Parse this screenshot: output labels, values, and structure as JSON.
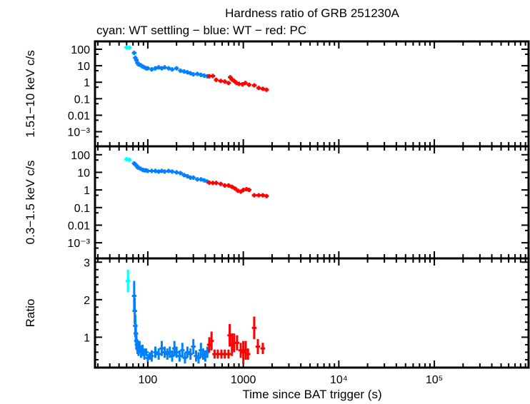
{
  "chart_data": {
    "type": "scatter",
    "title": "Hardness ratio of GRB 251230A",
    "subtitle": "cyan: WT settling − blue: WT − red: PC",
    "xlabel": "Time since BAT trigger (s)",
    "xscale": "log",
    "xlim": [
      28,
      970000
    ],
    "x_ticks": [
      {
        "v": 100,
        "label": "100"
      },
      {
        "v": 1000,
        "label": "1000"
      },
      {
        "v": 10000,
        "label": "10⁴"
      },
      {
        "v": 100000,
        "label": "10⁵"
      }
    ],
    "colors": {
      "wt_settling": "#00ffff",
      "wt": "#0080ff",
      "pc": "#ff0000"
    },
    "panels": [
      {
        "ylabel": "1.51−10 keV c/s",
        "yscale": "log",
        "ylim": [
          0.00013,
          300
        ],
        "y_ticks": [
          {
            "v": 100,
            "label": "100"
          },
          {
            "v": 10,
            "label": "10"
          },
          {
            "v": 1,
            "label": "1"
          },
          {
            "v": 0.1,
            "label": "0.1"
          },
          {
            "v": 0.01,
            "label": "0.01"
          },
          {
            "v": 0.001,
            "label": "10⁻³"
          }
        ],
        "series": [
          {
            "name": "WT settling",
            "color": "wt_settling",
            "x": [
              60,
              64
            ],
            "y": [
              130,
              125
            ]
          },
          {
            "name": "WT",
            "color": "wt",
            "x": [
              72,
              74,
              76,
              78,
              80,
              84,
              88,
              92,
              96,
              100,
              110,
              120,
              130,
              140,
              150,
              165,
              180,
              200,
              220,
              240,
              260,
              280,
              300,
              330,
              360,
              390,
              420
            ],
            "y": [
              60,
              30,
              22,
              15,
              12,
              11,
              9,
              8,
              7,
              7,
              6,
              7,
              8,
              7,
              8,
              7,
              6,
              7,
              5,
              4.5,
              4,
              3.5,
              3,
              3.2,
              2.8,
              2.5,
              2.3
            ]
          },
          {
            "name": "PC",
            "color": "pc",
            "x": [
              440,
              480,
              520,
              580,
              640,
              700,
              730,
              760,
              800,
              850,
              900,
              980,
              1050,
              1150,
              1300,
              1450,
              1600,
              1750
            ],
            "y": [
              2.3,
              2.4,
              1.4,
              1.2,
              1.1,
              0.9,
              2.0,
              1.5,
              1.2,
              0.9,
              0.8,
              0.75,
              0.9,
              0.7,
              0.65,
              0.45,
              0.4,
              0.35
            ]
          }
        ]
      },
      {
        "ylabel": "0.3−1.5 keV c/s",
        "yscale": "log",
        "ylim": [
          0.00013,
          300
        ],
        "y_ticks": [
          {
            "v": 100,
            "label": "100"
          },
          {
            "v": 10,
            "label": "10"
          },
          {
            "v": 1,
            "label": "1"
          },
          {
            "v": 0.1,
            "label": "0.1"
          },
          {
            "v": 0.01,
            "label": "0.01"
          },
          {
            "v": 0.001,
            "label": "10⁻³"
          }
        ],
        "series": [
          {
            "name": "WT settling",
            "color": "wt_settling",
            "x": [
              60,
              64
            ],
            "y": [
              55,
              52
            ]
          },
          {
            "name": "WT",
            "color": "wt",
            "x": [
              72,
              74,
              76,
              78,
              80,
              84,
              88,
              92,
              96,
              100,
              110,
              120,
              130,
              140,
              150,
              165,
              180,
              200,
              220,
              240,
              260,
              280,
              300,
              330,
              360,
              390,
              420
            ],
            "y": [
              32,
              28,
              24,
              20,
              18,
              16,
              14,
              13,
              13,
              12,
              12,
              12,
              11,
              12,
              11,
              12,
              11,
              10,
              9,
              7,
              6,
              5,
              5,
              4,
              4,
              3.5,
              3
            ]
          },
          {
            "name": "PC",
            "color": "pc",
            "x": [
              440,
              480,
              520,
              580,
              640,
              700,
              760,
              820,
              880,
              940,
              1000,
              1080,
              1150,
              1300,
              1450,
              1600,
              1750
            ],
            "y": [
              2.6,
              2.5,
              2.5,
              2.2,
              1.8,
              1.8,
              1.5,
              1.2,
              0.9,
              0.8,
              1.0,
              1.1,
              1.0,
              0.5,
              0.5,
              0.5,
              0.45
            ]
          }
        ]
      },
      {
        "ylabel": "Ratio",
        "yscale": "linear",
        "ylim": [
          0.19,
          3.1
        ],
        "y_ticks": [
          {
            "v": 1,
            "label": "1"
          },
          {
            "v": 2,
            "label": "2"
          },
          {
            "v": 3,
            "label": "3"
          }
        ],
        "series": [
          {
            "name": "WT settling",
            "color": "wt_settling",
            "x": [
              62
            ],
            "y": [
              2.5
            ],
            "err": [
              0.3
            ]
          },
          {
            "name": "WT",
            "color": "wt",
            "x": [
              72,
              73,
              74,
              75,
              76,
              77,
              78,
              80,
              82,
              85,
              88,
              92,
              96,
              100,
              105,
              110,
              120,
              130,
              140,
              150,
              160,
              170,
              180,
              190,
              200,
              215,
              230,
              245,
              260,
              280,
              300,
              320,
              340,
              360,
              380,
              400,
              420
            ],
            "y": [
              2.1,
              1.7,
              1.3,
              1.1,
              0.9,
              0.8,
              0.7,
              0.7,
              0.75,
              0.6,
              0.65,
              0.55,
              0.6,
              0.45,
              0.5,
              0.5,
              0.6,
              0.55,
              0.7,
              0.6,
              0.55,
              0.6,
              0.5,
              0.7,
              0.6,
              0.5,
              0.65,
              0.45,
              0.6,
              0.55,
              0.75,
              0.5,
              0.45,
              0.65,
              0.55,
              0.5,
              0.6
            ],
            "err": [
              0.4,
              0.35,
              0.3,
              0.25,
              0.2,
              0.15,
              0.15,
              0.2,
              0.15,
              0.15,
              0.15,
              0.15,
              0.1,
              0.1,
              0.1,
              0.15,
              0.15,
              0.15,
              0.2,
              0.15,
              0.15,
              0.15,
              0.15,
              0.2,
              0.15,
              0.15,
              0.2,
              0.15,
              0.15,
              0.15,
              0.2,
              0.15,
              0.15,
              0.2,
              0.15,
              0.15,
              0.15
            ]
          },
          {
            "name": "PC",
            "color": "pc",
            "x": [
              440,
              465,
              500,
              540,
              590,
              640,
              700,
              720,
              760,
              800,
              860,
              940,
              1000,
              1060,
              1120,
              1300,
              1420,
              1600
            ],
            "y": [
              0.8,
              0.9,
              0.55,
              0.55,
              0.55,
              0.55,
              0.55,
              1.05,
              0.8,
              0.85,
              0.85,
              0.65,
              0.6,
              0.65,
              0.55,
              1.25,
              0.75,
              0.7
            ],
            "err": [
              0.2,
              0.25,
              0.12,
              0.12,
              0.12,
              0.12,
              0.12,
              0.3,
              0.3,
              0.25,
              0.2,
              0.2,
              0.3,
              0.25,
              0.15,
              0.3,
              0.2,
              0.15
            ]
          }
        ]
      }
    ]
  }
}
